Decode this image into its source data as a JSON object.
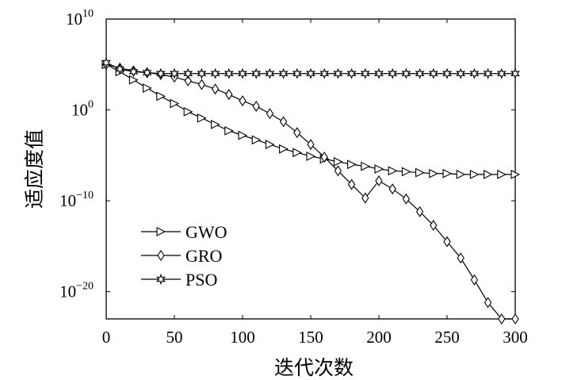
{
  "chart_data": {
    "type": "line",
    "title": "",
    "xlabel": "迭代次数",
    "ylabel": "适应度值",
    "xlim": [
      0,
      300
    ],
    "y_scale": "log",
    "ylim_exponent": [
      -23,
      10
    ],
    "x_ticks": [
      "0",
      "50",
      "100",
      "150",
      "200",
      "250",
      "300"
    ],
    "y_ticks": [
      {
        "base": "10",
        "exp": "10"
      },
      {
        "base": "10",
        "exp": "0"
      },
      {
        "base": "10",
        "exp": "−10"
      },
      {
        "base": "10",
        "exp": "−20"
      }
    ],
    "legend": {
      "position": "bottom-left",
      "entries": [
        "GWO",
        "GRO",
        "PSO"
      ]
    },
    "series": [
      {
        "name": "GWO",
        "marker": "triangle-right",
        "x": [
          0,
          10,
          20,
          30,
          40,
          50,
          60,
          70,
          80,
          90,
          100,
          110,
          120,
          130,
          140,
          150,
          160,
          170,
          180,
          190,
          200,
          210,
          220,
          230,
          240,
          250,
          260,
          270,
          280,
          290,
          300
        ],
        "log10_y": [
          5.0,
          4.2,
          3.3,
          2.4,
          1.5,
          0.7,
          -0.2,
          -0.9,
          -1.6,
          -2.3,
          -2.8,
          -3.3,
          -3.8,
          -4.3,
          -4.7,
          -5.1,
          -5.4,
          -5.7,
          -6.0,
          -6.2,
          -6.5,
          -6.7,
          -6.8,
          -6.9,
          -7.0,
          -7.0,
          -7.1,
          -7.1,
          -7.1,
          -7.1,
          -7.1
        ]
      },
      {
        "name": "GRO",
        "marker": "diamond",
        "x": [
          0,
          10,
          20,
          30,
          40,
          50,
          60,
          70,
          80,
          90,
          100,
          110,
          120,
          130,
          140,
          150,
          160,
          170,
          180,
          190,
          200,
          210,
          220,
          230,
          240,
          250,
          260,
          270,
          280,
          290,
          300
        ],
        "log10_y": [
          5.0,
          4.6,
          4.3,
          4.1,
          3.9,
          3.6,
          3.2,
          2.8,
          2.3,
          1.7,
          1.0,
          0.4,
          -0.4,
          -1.3,
          -2.5,
          -3.8,
          -5.2,
          -6.7,
          -8.2,
          -9.7,
          -7.8,
          -8.7,
          -9.8,
          -11.2,
          -12.7,
          -14.5,
          -16.3,
          -18.7,
          -21.2,
          -23.0,
          -23.0
        ]
      },
      {
        "name": "PSO",
        "marker": "star",
        "x": [
          0,
          10,
          20,
          30,
          40,
          50,
          60,
          70,
          80,
          90,
          100,
          110,
          120,
          130,
          140,
          150,
          160,
          170,
          180,
          190,
          200,
          210,
          220,
          230,
          240,
          250,
          260,
          270,
          280,
          290,
          300
        ],
        "log10_y": [
          5.2,
          4.5,
          4.2,
          4.1,
          4.0,
          4.0,
          4.0,
          4.0,
          4.0,
          4.0,
          4.0,
          4.0,
          4.0,
          4.0,
          4.0,
          4.0,
          4.0,
          4.0,
          4.0,
          4.0,
          4.0,
          4.0,
          4.0,
          4.0,
          4.0,
          4.0,
          4.0,
          4.0,
          4.0,
          4.0,
          4.0
        ]
      }
    ]
  }
}
